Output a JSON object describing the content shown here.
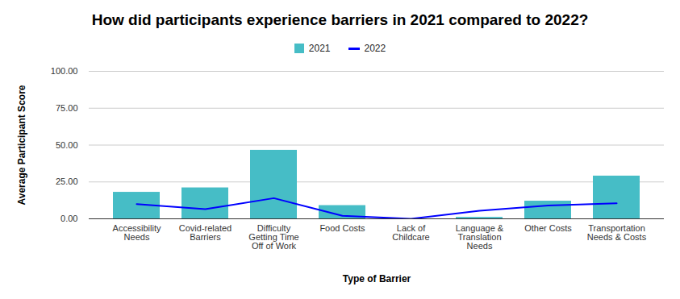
{
  "chart_data": {
    "type": "bar",
    "title": "How did participants experience barriers in 2021 compared to 2022?",
    "x_label": "Type of Barrier",
    "y_label": "Average Participant Score",
    "categories": [
      "Accessibility Needs",
      "Covid-related Barriers",
      "Difficulty Getting Time Off of Work",
      "Food Costs",
      "Lack of Childcare",
      "Language & Translation Needs",
      "Other Costs",
      "Transportation Needs & Costs"
    ],
    "series": [
      {
        "name": "2021",
        "type": "bar",
        "color": "#46bdc6",
        "values": [
          18,
          21,
          46.5,
          9,
          0,
          1,
          12,
          29
        ]
      },
      {
        "name": "2022",
        "type": "line",
        "color": "#0000ff",
        "values": [
          10,
          6.5,
          14,
          2,
          0,
          5.5,
          9,
          10.5
        ]
      }
    ],
    "ylim": [
      0,
      100
    ],
    "yticks": [
      {
        "value": 0,
        "label": "0.00"
      },
      {
        "value": 25,
        "label": "25.00"
      },
      {
        "value": 50,
        "label": "50.00"
      },
      {
        "value": 75,
        "label": "75.00"
      },
      {
        "value": 100,
        "label": "100.00"
      }
    ],
    "grid": true,
    "legend": "top"
  }
}
